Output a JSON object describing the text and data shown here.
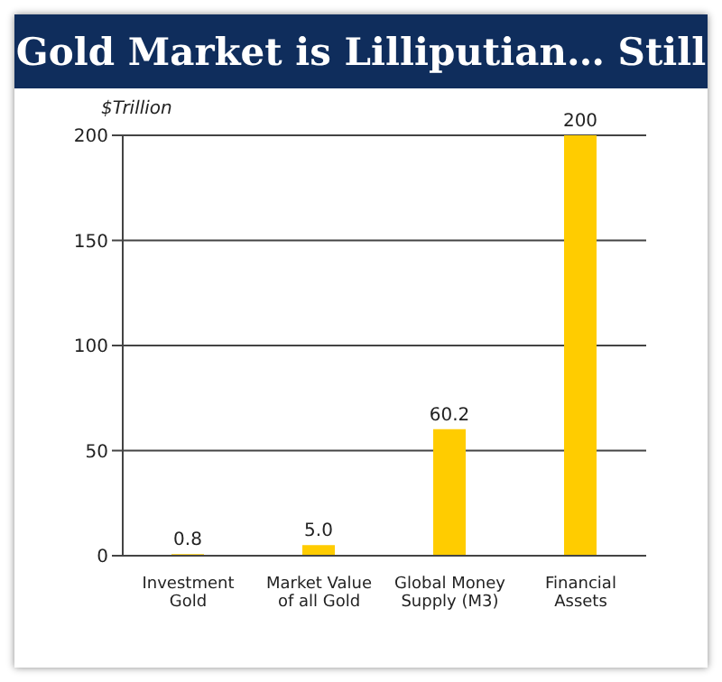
{
  "chart_data": {
    "type": "bar",
    "title": "Gold Market is Lilliputian… Still",
    "ylabel": "$Trillion",
    "categories": [
      "Investment Gold",
      "Market Value of all Gold",
      "Global Money Supply (M3)",
      "Financial Assets"
    ],
    "values": [
      0.8,
      5.0,
      60.2,
      200
    ],
    "value_labels": [
      "0.8",
      "5.0",
      "60.2",
      "200"
    ],
    "color": "#ffcc00",
    "ylim": [
      0,
      200
    ],
    "yticks": [
      0,
      50,
      100,
      150,
      200
    ],
    "grid": "y",
    "legend": false
  }
}
